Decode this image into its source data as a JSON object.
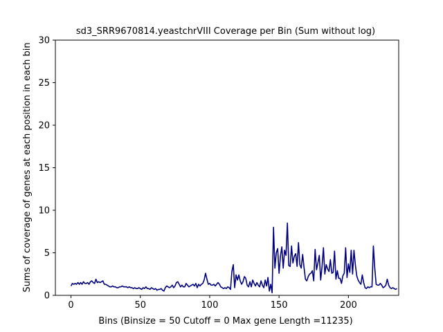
{
  "chart_data": {
    "type": "line",
    "title": "sd3_SRR9670814.yeastchrVIII Coverage per Bin (Sum without log)",
    "xlabel": "Bins  (Binsize = 50 Cutoff = 0 Max gene Length =11235)",
    "ylabel": "Sums of coverage of genes at each position in each bin",
    "xlim": [
      -11.25,
      236.25
    ],
    "ylim": [
      0,
      30
    ],
    "xticks": [
      0,
      50,
      100,
      150,
      200
    ],
    "yticks": [
      0,
      5,
      10,
      15,
      20,
      25,
      30
    ],
    "grid": false,
    "line_color": "#00007f",
    "series": [
      {
        "values": [
          1.1,
          1.4,
          1.3,
          1.4,
          1.3,
          1.5,
          1.3,
          1.5,
          1.3,
          1.6,
          1.4,
          1.4,
          1.5,
          1.3,
          1.6,
          1.7,
          1.5,
          1.4,
          1.9,
          1.5,
          1.6,
          1.5,
          1.6,
          1.7,
          1.3,
          1.3,
          1.2,
          1.1,
          1.0,
          1.0,
          1.1,
          1.0,
          1.0,
          0.9,
          0.9,
          1.0,
          1.0,
          1.1,
          1.0,
          1.0,
          1.0,
          0.9,
          1.0,
          0.9,
          0.9,
          0.8,
          0.9,
          0.8,
          0.8,
          0.9,
          0.8,
          0.7,
          0.9,
          0.8,
          1.0,
          0.8,
          0.8,
          0.7,
          0.9,
          0.8,
          0.7,
          0.8,
          0.6,
          0.7,
          0.7,
          0.8,
          0.6,
          0.5,
          0.9,
          1.1,
          1.0,
          0.9,
          1.0,
          1.2,
          0.9,
          1.1,
          1.5,
          1.6,
          1.3,
          1.0,
          1.2,
          1.0,
          1.0,
          1.4,
          1.2,
          1.0,
          1.1,
          1.2,
          1.3,
          1.1,
          1.4,
          0.9,
          1.3,
          1.1,
          1.3,
          1.4,
          1.8,
          2.6,
          1.9,
          1.3,
          1.4,
          1.2,
          1.2,
          1.3,
          1.1,
          1.3,
          1.5,
          1.3,
          1.0,
          0.9,
          0.8,
          0.9,
          0.8,
          1.0,
          0.9,
          0.7,
          2.8,
          3.6,
          0.9,
          2.4,
          1.8,
          2.4,
          1.7,
          1.3,
          1.6,
          2.2,
          2.0,
          1.2,
          1.0,
          1.6,
          1.0,
          1.8,
          1.4,
          1.1,
          1.5,
          1.2,
          1.0,
          1.7,
          1.2,
          0.9,
          1.8,
          1.1,
          2.1,
          0.5,
          1.3,
          0.3,
          8.0,
          3.2,
          5.0,
          5.5,
          2.6,
          4.6,
          5.7,
          3.2,
          5.3,
          4.7,
          8.5,
          3.5,
          3.4,
          5.8,
          3.8,
          4.6,
          4.9,
          3.4,
          6.2,
          3.6,
          3.2,
          4.8,
          3.3,
          1.9,
          1.7,
          2.2,
          2.5,
          2.6,
          2.9,
          1.7,
          5.4,
          3.0,
          3.8,
          4.7,
          1.8,
          3.4,
          5.6,
          2.5,
          3.6,
          3.1,
          2.8,
          4.2,
          2.6,
          2.7,
          5.2,
          1.9,
          2.9,
          2.0,
          2.0,
          1.4,
          2.3,
          2.6,
          5.6,
          2.1,
          3.7,
          2.7,
          5.3,
          2.5,
          5.3,
          3.6,
          2.3,
          1.8,
          1.5,
          1.3,
          2.4,
          1.5,
          0.9,
          0.8,
          1.0,
          0.9,
          1.0,
          1.0,
          5.8,
          3.2,
          1.3,
          1.2,
          1.2,
          1.4,
          1.2,
          0.9,
          1.0,
          1.2,
          1.9,
          1.2,
          0.9,
          0.8,
          0.9,
          0.8,
          0.7,
          0.8
        ]
      }
    ]
  }
}
